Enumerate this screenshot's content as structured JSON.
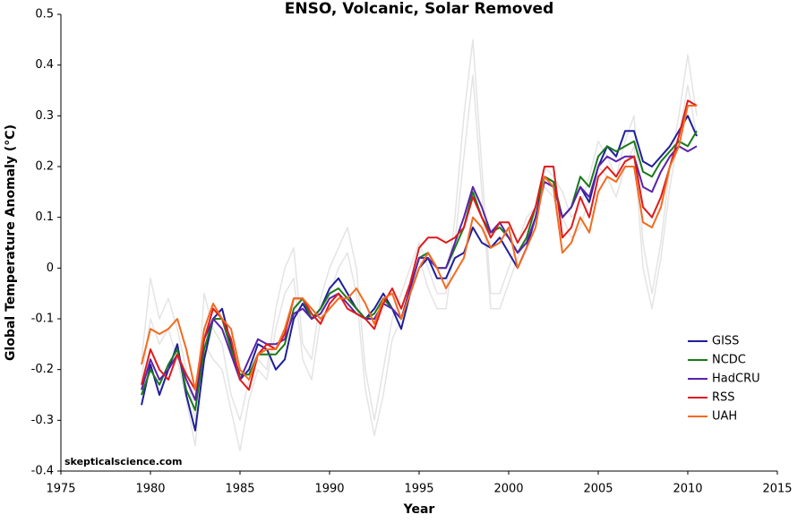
{
  "chart_data": {
    "type": "line",
    "title": "ENSO, Volcanic, Solar Removed",
    "x_label": "Year",
    "y_label": "Global Temperature Anomaly (°C)",
    "annotation": "skepticalscience.com",
    "x": [
      1979.5,
      1980,
      1980.5,
      1981,
      1981.5,
      1982,
      1982.5,
      1983,
      1983.5,
      1984,
      1984.5,
      1985,
      1985.5,
      1986,
      1986.5,
      1987,
      1987.5,
      1988,
      1988.5,
      1989,
      1989.5,
      1990,
      1990.5,
      1991,
      1991.5,
      1992,
      1992.5,
      1993,
      1993.5,
      1994,
      1994.5,
      1995,
      1995.5,
      1996,
      1996.5,
      1997,
      1997.5,
      1998,
      1998.5,
      1999,
      1999.5,
      2000,
      2000.5,
      2001,
      2001.5,
      2002,
      2002.5,
      2003,
      2003.5,
      2004,
      2004.5,
      2005,
      2005.5,
      2006,
      2006.5,
      2007,
      2007.5,
      2008,
      2008.5,
      2009,
      2009.5,
      2010,
      2010.5
    ],
    "series": [
      {
        "color": "#e4e4e4",
        "values": [
          -0.18,
          -0.02,
          -0.1,
          -0.06,
          -0.12,
          -0.2,
          -0.3,
          -0.05,
          -0.12,
          -0.15,
          -0.25,
          -0.3,
          -0.22,
          -0.18,
          -0.2,
          -0.08,
          0.0,
          0.04,
          -0.15,
          -0.18,
          -0.06,
          0.0,
          0.04,
          0.08,
          0.0,
          -0.2,
          -0.3,
          -0.2,
          -0.1,
          -0.05,
          0.0,
          0.05,
          0.0,
          -0.05,
          -0.05,
          0.1,
          0.3,
          0.45,
          0.2,
          -0.05,
          -0.05,
          0.0,
          0.05,
          0.1,
          0.12,
          0.2,
          0.18,
          0.15,
          0.1,
          0.12,
          0.18,
          0.25,
          0.22,
          0.18,
          0.25,
          0.3,
          0.05,
          -0.05,
          0.05,
          0.2,
          0.3,
          0.42,
          0.3
        ]
      },
      {
        "color": "#e4e4e4",
        "values": [
          -0.22,
          -0.1,
          -0.15,
          -0.12,
          -0.18,
          -0.26,
          -0.35,
          -0.15,
          -0.18,
          -0.2,
          -0.28,
          -0.36,
          -0.26,
          -0.2,
          -0.22,
          -0.12,
          -0.05,
          -0.02,
          -0.18,
          -0.22,
          -0.1,
          -0.05,
          0.0,
          0.03,
          -0.05,
          -0.24,
          -0.33,
          -0.25,
          -0.14,
          -0.1,
          -0.04,
          0.02,
          -0.04,
          -0.08,
          -0.08,
          0.05,
          0.22,
          0.38,
          0.15,
          -0.08,
          -0.08,
          -0.03,
          0.02,
          0.06,
          0.1,
          0.16,
          0.14,
          0.1,
          0.06,
          0.08,
          0.14,
          0.2,
          0.18,
          0.14,
          0.2,
          0.24,
          0.0,
          -0.08,
          0.02,
          0.16,
          0.26,
          0.36,
          0.26
        ]
      },
      {
        "name": "GISS",
        "color": "#1f1f9a",
        "values": [
          -0.27,
          -0.19,
          -0.25,
          -0.2,
          -0.15,
          -0.25,
          -0.32,
          -0.18,
          -0.1,
          -0.08,
          -0.15,
          -0.22,
          -0.2,
          -0.15,
          -0.16,
          -0.2,
          -0.18,
          -0.1,
          -0.07,
          -0.1,
          -0.08,
          -0.04,
          -0.02,
          -0.05,
          -0.08,
          -0.1,
          -0.08,
          -0.05,
          -0.08,
          -0.12,
          -0.05,
          0.0,
          0.02,
          -0.02,
          -0.02,
          0.02,
          0.03,
          0.08,
          0.05,
          0.04,
          0.06,
          0.03,
          0.0,
          0.04,
          0.1,
          0.18,
          0.17,
          0.1,
          0.12,
          0.16,
          0.13,
          0.2,
          0.24,
          0.22,
          0.27,
          0.27,
          0.21,
          0.2,
          0.22,
          0.24,
          0.27,
          0.3,
          0.26
        ]
      },
      {
        "name": "NCDC",
        "color": "#1a7a1a",
        "values": [
          -0.25,
          -0.2,
          -0.23,
          -0.19,
          -0.16,
          -0.24,
          -0.28,
          -0.16,
          -0.1,
          -0.1,
          -0.16,
          -0.21,
          -0.21,
          -0.17,
          -0.17,
          -0.17,
          -0.15,
          -0.08,
          -0.06,
          -0.1,
          -0.08,
          -0.05,
          -0.04,
          -0.06,
          -0.08,
          -0.1,
          -0.09,
          -0.06,
          -0.08,
          -0.1,
          -0.04,
          0.02,
          0.03,
          0.0,
          0.0,
          0.04,
          0.08,
          0.15,
          0.1,
          0.07,
          0.08,
          0.06,
          0.03,
          0.06,
          0.12,
          0.18,
          0.17,
          0.1,
          0.12,
          0.18,
          0.16,
          0.22,
          0.24,
          0.23,
          0.24,
          0.25,
          0.19,
          0.18,
          0.21,
          0.23,
          0.25,
          0.24,
          0.27
        ]
      },
      {
        "name": "HadCRU",
        "color": "#5a22a8",
        "values": [
          -0.24,
          -0.18,
          -0.22,
          -0.2,
          -0.17,
          -0.22,
          -0.26,
          -0.14,
          -0.1,
          -0.12,
          -0.17,
          -0.22,
          -0.18,
          -0.14,
          -0.15,
          -0.15,
          -0.14,
          -0.09,
          -0.08,
          -0.1,
          -0.09,
          -0.06,
          -0.05,
          -0.07,
          -0.09,
          -0.1,
          -0.1,
          -0.07,
          -0.08,
          -0.1,
          -0.04,
          0.02,
          0.02,
          0.0,
          0.0,
          0.05,
          0.1,
          0.16,
          0.12,
          0.07,
          0.09,
          0.06,
          0.03,
          0.05,
          0.1,
          0.17,
          0.16,
          0.1,
          0.12,
          0.16,
          0.14,
          0.2,
          0.22,
          0.21,
          0.22,
          0.22,
          0.16,
          0.15,
          0.19,
          0.22,
          0.24,
          0.23,
          0.24
        ]
      },
      {
        "name": "RSS",
        "color": "#e01b1b",
        "values": [
          -0.23,
          -0.16,
          -0.2,
          -0.22,
          -0.17,
          -0.21,
          -0.24,
          -0.14,
          -0.08,
          -0.1,
          -0.14,
          -0.22,
          -0.24,
          -0.17,
          -0.15,
          -0.16,
          -0.13,
          -0.06,
          -0.06,
          -0.09,
          -0.11,
          -0.07,
          -0.05,
          -0.08,
          -0.09,
          -0.1,
          -0.12,
          -0.07,
          -0.04,
          -0.08,
          -0.03,
          0.04,
          0.06,
          0.06,
          0.05,
          0.06,
          0.08,
          0.14,
          0.1,
          0.06,
          0.09,
          0.09,
          0.05,
          0.08,
          0.12,
          0.2,
          0.2,
          0.06,
          0.08,
          0.14,
          0.1,
          0.18,
          0.2,
          0.18,
          0.21,
          0.22,
          0.12,
          0.1,
          0.14,
          0.2,
          0.26,
          0.33,
          0.32
        ]
      },
      {
        "name": "UAH",
        "color": "#f26b1f",
        "values": [
          -0.19,
          -0.12,
          -0.13,
          -0.12,
          -0.1,
          -0.16,
          -0.24,
          -0.12,
          -0.07,
          -0.1,
          -0.12,
          -0.2,
          -0.22,
          -0.17,
          -0.16,
          -0.16,
          -0.12,
          -0.06,
          -0.06,
          -0.08,
          -0.1,
          -0.08,
          -0.06,
          -0.06,
          -0.04,
          -0.07,
          -0.11,
          -0.06,
          -0.05,
          -0.1,
          -0.05,
          0.0,
          0.03,
          0.0,
          -0.04,
          -0.01,
          0.02,
          0.1,
          0.08,
          0.04,
          0.05,
          0.08,
          0.0,
          0.04,
          0.08,
          0.18,
          0.16,
          0.03,
          0.05,
          0.1,
          0.07,
          0.15,
          0.18,
          0.17,
          0.2,
          0.2,
          0.09,
          0.08,
          0.12,
          0.2,
          0.24,
          0.32,
          0.32
        ]
      }
    ],
    "xlim": [
      1975,
      2015
    ],
    "xticks": [
      1975,
      1980,
      1985,
      1990,
      1995,
      2000,
      2005,
      2010,
      2015
    ],
    "ylim": [
      -0.4,
      0.5
    ],
    "yticks": [
      -0.4,
      -0.3,
      -0.2,
      -0.1,
      0,
      0.1,
      0.2,
      0.3,
      0.4,
      0.5
    ],
    "grid": false,
    "legend": "lower right"
  }
}
